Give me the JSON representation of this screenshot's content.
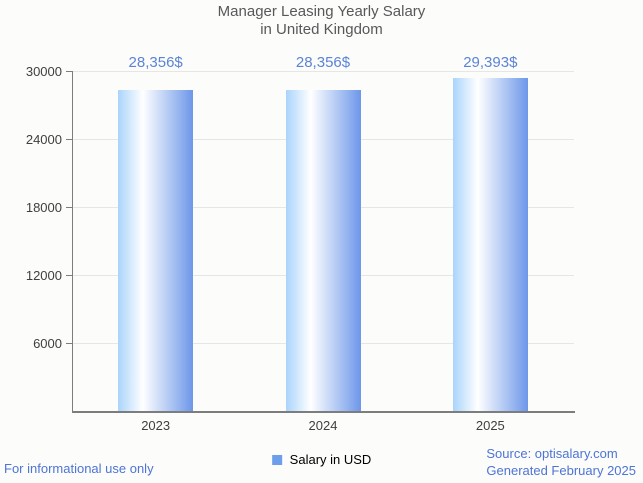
{
  "title": {
    "line1": "Manager Leasing Yearly Salary",
    "line2": "in United Kingdom"
  },
  "chart_data": {
    "type": "bar",
    "categories": [
      "2023",
      "2024",
      "2025"
    ],
    "series": [
      {
        "name": "Salary in USD",
        "values": [
          28356,
          28356,
          29393
        ]
      }
    ],
    "value_labels": [
      "28,356$",
      "28,356$",
      "29,393$"
    ],
    "title": "Manager Leasing Yearly Salary in United Kingdom",
    "xlabel": "",
    "ylabel": "",
    "ylim": [
      0,
      30000
    ],
    "yticks": [
      6000,
      12000,
      18000,
      24000,
      30000
    ],
    "grid": true,
    "legend_position": "bottom"
  },
  "legend": {
    "label": "Salary in USD"
  },
  "footer": {
    "left": "For informational use only",
    "source": "Source: optisalary.com",
    "generated": "Generated February 2025"
  },
  "colors": {
    "title": "#58585a",
    "axis_text": "#3f3f3f",
    "axis_line": "#7d7d7d",
    "gridline": "#e6e6e6",
    "value_label": "#5b84d6",
    "footer_link": "#4d74d6",
    "legend_swatch": "#6d9eeb",
    "bar_grad_0": "#aad4fb",
    "bar_grad_1": "#ffffff",
    "bar_grad_2": "#6d97e9"
  }
}
